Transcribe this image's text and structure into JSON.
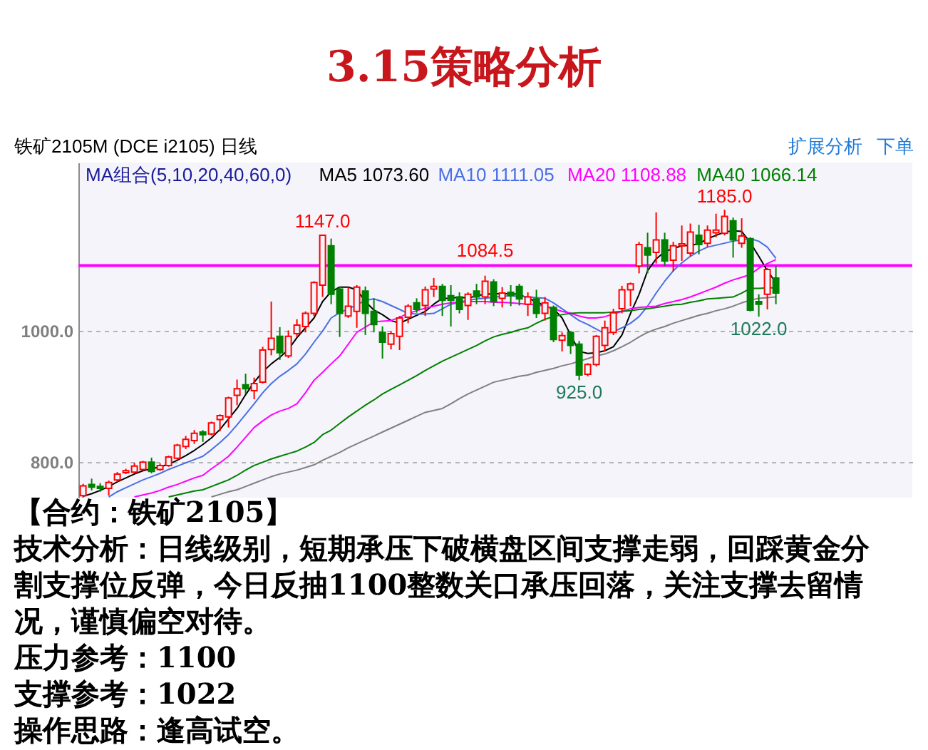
{
  "chart_data": {
    "type": "candlestick",
    "title": "3.15策略分析",
    "subtitle": "铁矿2105M (DCE i2105) 日线",
    "categories": [
      null,
      null,
      null,
      null,
      null,
      null,
      null,
      null,
      null,
      null,
      null,
      null,
      null,
      null,
      null,
      null,
      null,
      null,
      null,
      null,
      null,
      null,
      null,
      null,
      null,
      null,
      null,
      null,
      null,
      null,
      null,
      null,
      null,
      null,
      null,
      null,
      null,
      null,
      null,
      null,
      null,
      null,
      null,
      null,
      null,
      null,
      null,
      null,
      null,
      null,
      null,
      null,
      null,
      null,
      null,
      null,
      null,
      null,
      null,
      null,
      null,
      null,
      null,
      null,
      null,
      null,
      null,
      null,
      null,
      null,
      null,
      null,
      null,
      null,
      null,
      null,
      null,
      null,
      null,
      null,
      null,
      null
    ],
    "ohlc": [
      [
        749,
        767,
        746,
        764
      ],
      [
        766,
        775,
        757,
        762
      ],
      [
        763,
        768,
        755,
        760
      ],
      [
        760,
        772,
        749,
        769
      ],
      [
        773,
        785,
        770,
        782
      ],
      [
        784,
        790,
        782,
        787
      ],
      [
        785,
        799,
        783,
        794
      ],
      [
        789,
        802,
        787,
        800
      ],
      [
        800,
        807,
        783,
        786
      ],
      [
        789,
        798,
        787,
        795
      ],
      [
        795,
        810,
        793,
        808
      ],
      [
        806,
        828,
        804,
        826
      ],
      [
        824,
        840,
        820,
        835
      ],
      [
        833,
        849,
        828,
        844
      ],
      [
        846,
        849,
        831,
        842
      ],
      [
        843,
        862,
        841,
        860
      ],
      [
        865,
        873,
        847,
        871
      ],
      [
        869,
        900,
        853,
        898
      ],
      [
        902,
        926,
        887,
        912
      ],
      [
        918,
        935,
        904,
        912
      ],
      [
        909,
        929,
        896,
        920
      ],
      [
        922,
        976,
        920,
        971
      ],
      [
        972,
        1045,
        963,
        989
      ],
      [
        992,
        1006,
        956,
        967
      ],
      [
        962,
        1001,
        959,
        992
      ],
      [
        996,
        1018,
        991,
        1009
      ],
      [
        1007,
        1030,
        998,
        1027
      ],
      [
        1027,
        1076,
        1023,
        1074
      ],
      [
        1070,
        1147,
        1052,
        1146
      ],
      [
        1130,
        1141,
        1041,
        1056
      ],
      [
        1064,
        1068,
        991,
        1027
      ],
      [
        1023,
        1067,
        1020,
        1038
      ],
      [
        1030,
        1070,
        1005,
        1067
      ],
      [
        1061,
        1068,
        994,
        1027
      ],
      [
        1030,
        1050,
        998,
        1010
      ],
      [
        998,
        1007,
        958,
        983
      ],
      [
        980,
        1000,
        972,
        996
      ],
      [
        992,
        1023,
        971,
        1020
      ],
      [
        1021,
        1041,
        1012,
        1038
      ],
      [
        1043,
        1050,
        1028,
        1033
      ],
      [
        1039,
        1068,
        1023,
        1063
      ],
      [
        1064,
        1081,
        1052,
        1068
      ],
      [
        1068,
        1072,
        1023,
        1047
      ],
      [
        1054,
        1070,
        1007,
        1047
      ],
      [
        1052,
        1059,
        1027,
        1033
      ],
      [
        1039,
        1059,
        1017,
        1056
      ],
      [
        1061,
        1072,
        1041,
        1052
      ],
      [
        1052,
        1084.5,
        1041,
        1076
      ],
      [
        1075,
        1079,
        1038,
        1045
      ],
      [
        1050,
        1067,
        1036,
        1058
      ],
      [
        1059,
        1070,
        1038,
        1054
      ],
      [
        1068,
        1072,
        1039,
        1049
      ],
      [
        1041,
        1059,
        1023,
        1052
      ],
      [
        1049,
        1063,
        1020,
        1027
      ],
      [
        1027,
        1052,
        1016,
        1043
      ],
      [
        1036,
        1039,
        983,
        987
      ],
      [
        986,
        998,
        969,
        993
      ],
      [
        998,
        1000,
        965,
        978
      ],
      [
        980,
        985,
        925,
        933
      ],
      [
        934,
        951,
        931,
        949
      ],
      [
        949,
        994,
        946,
        992
      ],
      [
        978,
        1016,
        969,
        1005
      ],
      [
        998,
        1034,
        994,
        1028
      ],
      [
        1034,
        1069,
        1027,
        1063
      ],
      [
        1063,
        1074,
        1038,
        1072
      ],
      [
        1099,
        1136,
        1088,
        1132
      ],
      [
        1127,
        1150,
        1088,
        1116
      ],
      [
        1120,
        1181,
        1103,
        1139
      ],
      [
        1139,
        1150,
        1099,
        1107
      ],
      [
        1108,
        1136,
        1091,
        1130
      ],
      [
        1130,
        1161,
        1107,
        1133
      ],
      [
        1119,
        1164,
        1114,
        1151
      ],
      [
        1146,
        1162,
        1117,
        1132
      ],
      [
        1134,
        1161,
        1128,
        1154
      ],
      [
        1150,
        1179,
        1143,
        1154
      ],
      [
        1149,
        1185,
        1146,
        1175
      ],
      [
        1168,
        1173,
        1112,
        1139
      ],
      [
        1134,
        1172,
        1127,
        1145
      ],
      [
        1141,
        1143,
        1030,
        1032
      ],
      [
        1045,
        1056,
        1022,
        1041
      ],
      [
        1056,
        1096,
        1033,
        1094
      ],
      [
        1081,
        1099,
        1041,
        1058
      ]
    ],
    "colors": [
      "#ff0000",
      "#008000",
      "#008000",
      "#ff0000",
      "#ff0000",
      "#ff0000",
      "#ff0000",
      "#ff0000",
      "#008000",
      "#ff0000",
      "#ff0000",
      "#ff0000",
      "#ff0000",
      "#ff0000",
      "#008000",
      "#ff0000",
      "#ff0000",
      "#ff0000",
      "#ff0000",
      "#008000",
      "#ff0000",
      "#ff0000",
      "#ff0000",
      "#008000",
      "#ff0000",
      "#ff0000",
      "#ff0000",
      "#ff0000",
      "#ff0000",
      "#008000",
      "#008000",
      "#ff0000",
      "#ff0000",
      "#008000",
      "#008000",
      "#008000",
      "#ff0000",
      "#ff0000",
      "#ff0000",
      "#008000",
      "#ff0000",
      "#ff0000",
      "#008000",
      "#008000",
      "#008000",
      "#ff0000",
      "#008000",
      "#ff0000",
      "#008000",
      "#ff0000",
      "#008000",
      "#008000",
      "#ff0000",
      "#008000",
      "#ff0000",
      "#008000",
      "#ff0000",
      "#008000",
      "#008000",
      "#ff0000",
      "#ff0000",
      "#ff0000",
      "#ff0000",
      "#ff0000",
      "#ff0000",
      "#ff0000",
      "#008000",
      "#ff0000",
      "#008000",
      "#ff0000",
      "#ff0000",
      "#ff0000",
      "#008000",
      "#ff0000",
      "#ff0000",
      "#ff0000",
      "#008000",
      "#ff0000",
      "#008000",
      "#008000",
      "#ff0000",
      "#008000"
    ],
    "series": [
      {
        "name": "MA5 1073.60",
        "type": "line",
        "color": "#000000",
        "values": [
          748,
          752,
          757,
          763,
          770,
          776,
          782,
          787,
          790,
          793,
          797,
          803,
          810,
          818,
          827,
          837,
          850,
          866,
          882,
          903,
          922,
          938,
          950,
          960,
          972,
          990,
          1005,
          1020,
          1045,
          1060,
          1067,
          1067,
          1063,
          1045,
          1032,
          1025,
          1016,
          1012,
          1018,
          1024,
          1030,
          1041,
          1050,
          1050,
          1052,
          1050,
          1054,
          1056,
          1057,
          1057,
          1057,
          1056,
          1050,
          1045,
          1038,
          1034,
          1020,
          994,
          969,
          966,
          967,
          970,
          976,
          994,
          1027,
          1056,
          1092,
          1110,
          1121,
          1126,
          1130,
          1131,
          1133,
          1141,
          1146,
          1151,
          1153,
          1152,
          1135,
          1114,
          1092,
          1074
        ]
      },
      {
        "name": "MA10 1111.05",
        "type": "line",
        "color": "#4a6fe3",
        "values": [
          null,
          null,
          null,
          747,
          755,
          761,
          767,
          773,
          778,
          783,
          789,
          794,
          799,
          804,
          809,
          819,
          830,
          842,
          857,
          873,
          889,
          906,
          920,
          931,
          940,
          950,
          965,
          983,
          1000,
          1020,
          1028,
          1034,
          1040,
          1047,
          1049,
          1045,
          1039,
          1033,
          1027,
          1026,
          1026,
          1027,
          1034,
          1041,
          1044,
          1047,
          1049,
          1050,
          1052,
          1053,
          1054,
          1053,
          1052,
          1051,
          1050,
          1043,
          1034,
          1025,
          1016,
          1010,
          1003,
          996,
          999,
          1005,
          1012,
          1022,
          1038,
          1058,
          1076,
          1092,
          1104,
          1114,
          1122,
          1128,
          1131,
          1134,
          1137,
          1139,
          1141,
          1137,
          1128,
          1111
        ]
      },
      {
        "name": "MA20 1108.88",
        "type": "line",
        "color": "#ff00ff",
        "values": [
          null,
          null,
          null,
          null,
          null,
          null,
          747,
          750,
          753,
          757,
          762,
          766,
          771,
          776,
          780,
          790,
          799,
          809,
          823,
          838,
          853,
          863,
          872,
          878,
          882,
          889,
          906,
          925,
          937,
          950,
          962,
          980,
          998,
          1006,
          1014,
          1015,
          1016,
          1021,
          1027,
          1031,
          1035,
          1038,
          1041,
          1043,
          1044,
          1045,
          1045,
          1045,
          1044,
          1044,
          1043,
          1042,
          1041,
          1040,
          1038,
          1034,
          1030,
          1027,
          1023,
          1020,
          1020,
          1022,
          1026,
          1030,
          1034,
          1036,
          1037,
          1038,
          1042,
          1045,
          1048,
          1052,
          1057,
          1062,
          1067,
          1073,
          1078,
          1082,
          1086,
          1096,
          1103,
          1109
        ]
      },
      {
        "name": "MA40 1066.14",
        "type": "line",
        "color": "#008000",
        "values": [
          null,
          null,
          null,
          null,
          null,
          null,
          null,
          null,
          null,
          null,
          747,
          750,
          753,
          756,
          758,
          763,
          768,
          773,
          780,
          788,
          795,
          800,
          805,
          809,
          813,
          817,
          823,
          830,
          842,
          849,
          859,
          869,
          878,
          887,
          895,
          904,
          911,
          918,
          925,
          932,
          940,
          947,
          954,
          960,
          966,
          972,
          978,
          985,
          991,
          995,
          998,
          1002,
          1005,
          1012,
          1018,
          1022,
          1025,
          1027,
          1028,
          1028,
          1028,
          1028,
          1029,
          1030,
          1031,
          1033,
          1034,
          1036,
          1038,
          1040,
          1041,
          1044,
          1046,
          1049,
          1050,
          1051,
          1052,
          1058,
          1065,
          1065,
          1066,
          1066
        ]
      },
      {
        "type": "line",
        "color": "#808080",
        "values": [
          null,
          null,
          null,
          null,
          null,
          null,
          null,
          null,
          null,
          null,
          null,
          null,
          null,
          null,
          null,
          747,
          751,
          755,
          758,
          763,
          768,
          773,
          778,
          782,
          785,
          788,
          792,
          796,
          803,
          809,
          815,
          822,
          828,
          834,
          840,
          846,
          852,
          858,
          864,
          870,
          876,
          879,
          882,
          889,
          897,
          904,
          910,
          916,
          922,
          925,
          928,
          931,
          933,
          937,
          940,
          943,
          947,
          950,
          954,
          958,
          962,
          965,
          970,
          976,
          983,
          991,
          998,
          1003,
          1007,
          1012,
          1016,
          1020,
          1024,
          1027,
          1031,
          1034,
          1038,
          1043,
          1047,
          1050,
          1051,
          1052
        ]
      }
    ],
    "legend_title": "MA组合(5,10,20,40,60,0)",
    "legend": "top",
    "ylim": [
      746,
      1257
    ],
    "yticks": [
      {
        "value": 1000,
        "label": "1000.0"
      },
      {
        "value": 800,
        "label": "800.0"
      }
    ],
    "tick_labels": "y",
    "grid": "y",
    "ref_lines": [
      {
        "axis": "y",
        "value": 1100,
        "color": "#ff00ff"
      }
    ],
    "annotations": [
      {
        "text": "1147.0",
        "y": 1147
      },
      {
        "text": "1084.5",
        "y": 1084.5
      },
      {
        "text": "925.0",
        "y": 925
      },
      {
        "text": "1185.0",
        "y": 1185
      },
      {
        "text": "1022.0",
        "y": 1022
      },
      "扩展分析",
      "下单",
      "【合约：铁矿2105】",
      "技术分析：日线级别，短期承压下破横盘区间支撑走弱，回踩黄金分割支撑位反弹，今日反抽1100整数关口承压回落，关注支撑去留情况，谨慎偏空对待。",
      "压力参考：1100",
      "支撑参考：1022",
      "操作思路：逢高试空。"
    ]
  }
}
